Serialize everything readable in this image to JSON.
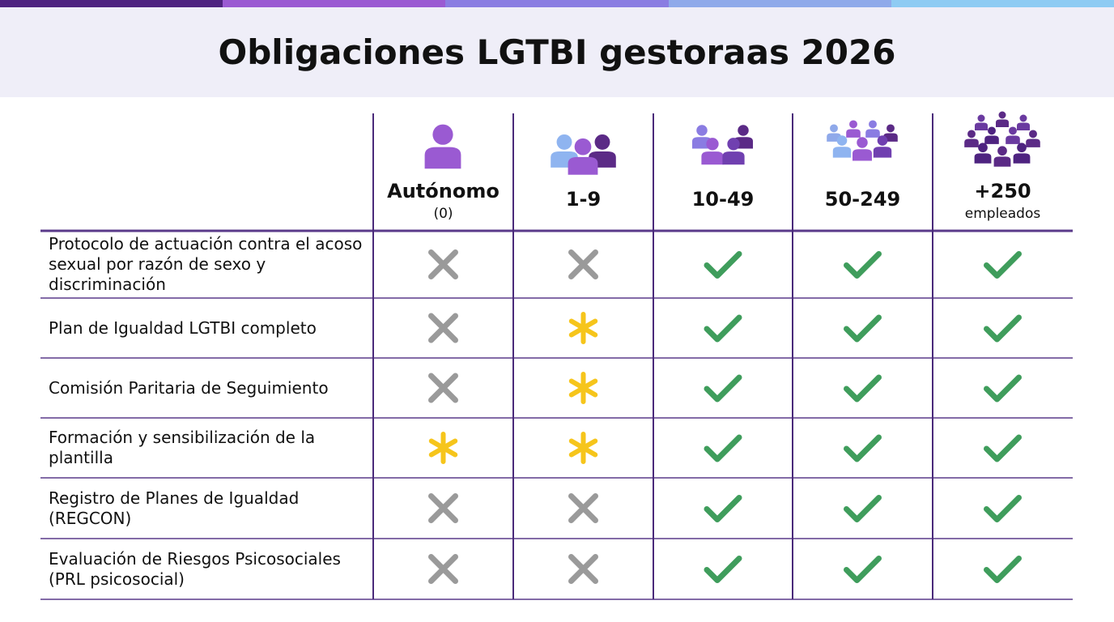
{
  "header": {
    "title": "Obligaciones LGTBI gestoraas 2026"
  },
  "table": {
    "columns": [
      {
        "label": "Autónomo",
        "sublabel": "(0)"
      },
      {
        "label": "1-9"
      },
      {
        "label": "10-49"
      },
      {
        "label": "50-249"
      },
      {
        "label": "+250",
        "sublabel": "empleados"
      }
    ],
    "rows": [
      {
        "label": "Protocolo de actuación contra el acoso sexual por razón de sexo y discriminación",
        "cells": [
          "no",
          "no",
          "yes",
          "yes",
          "yes"
        ]
      },
      {
        "label": "Plan de Igualdad LGTBI completo",
        "cells": [
          "no",
          "partial",
          "yes",
          "yes",
          "yes"
        ]
      },
      {
        "label": "Comisión Paritaria de Seguimiento",
        "cells": [
          "no",
          "partial",
          "yes",
          "yes",
          "yes"
        ]
      },
      {
        "label": "Formación y sensibilización de la plantilla",
        "cells": [
          "partial",
          "partial",
          "yes",
          "yes",
          "yes"
        ]
      },
      {
        "label": "Registro de Planes de Igualdad (REGCON)",
        "cells": [
          "no",
          "no",
          "yes",
          "yes",
          "yes"
        ]
      },
      {
        "label": "Evaluación de Riesgos Psicosociales (PRL psicosocial)",
        "cells": [
          "no",
          "no",
          "yes",
          "yes",
          "yes"
        ]
      }
    ]
  }
}
